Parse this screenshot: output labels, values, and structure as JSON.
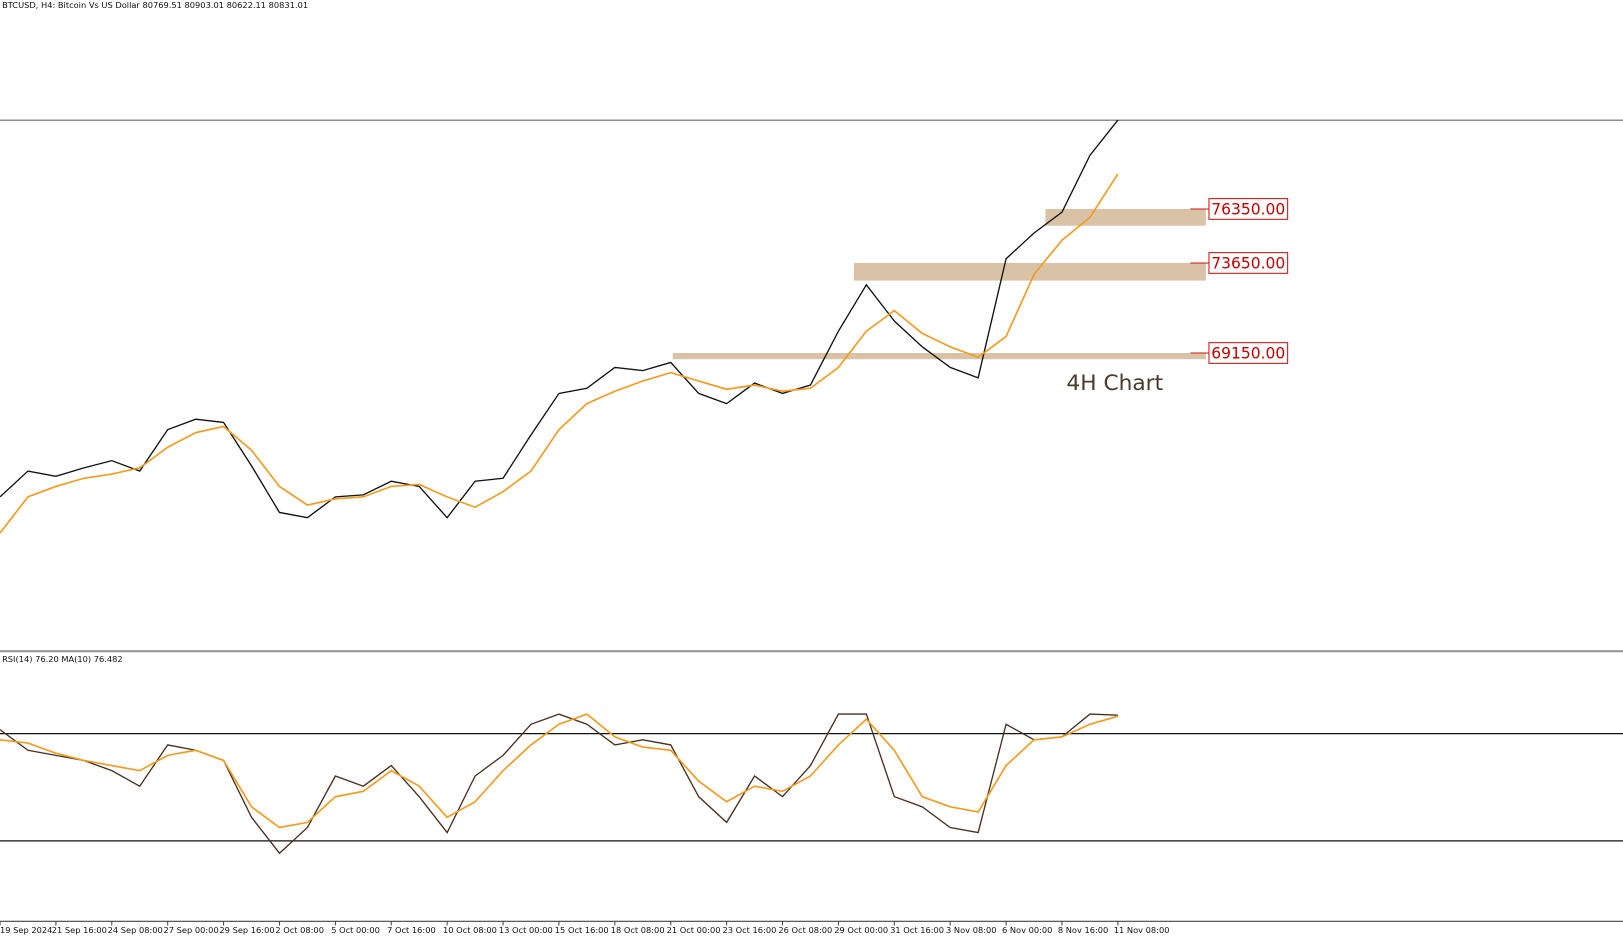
{
  "chart_data": [
    {
      "type": "line",
      "title": "BTCUSD, H4:  Bitcoin Vs US Dollar  80769.51 80903.01 80622.11 80831.01",
      "annotation": "4H Chart",
      "ylim": [
        54300,
        86790
      ],
      "series": [
        {
          "color": "#111111",
          "values": [
            61960,
            63250,
            62990,
            63410,
            63770,
            63250,
            65320,
            65840,
            65680,
            63510,
            61180,
            60920,
            61960,
            62060,
            62740,
            62480,
            60920,
            62740,
            62890,
            65060,
            67130,
            67390,
            68430,
            68270,
            68680,
            67130,
            66620,
            67650,
            67130,
            67550,
            70240,
            72560,
            70750,
            69460,
            68430,
            67910,
            73860,
            75150,
            76190,
            79030,
            80790
          ]
        },
        {
          "color": "#f29b1f",
          "values": [
            60150,
            61960,
            62480,
            62890,
            63100,
            63410,
            64440,
            65170,
            65480,
            64290,
            62480,
            61550,
            61860,
            61960,
            62480,
            62580,
            61960,
            61440,
            62220,
            63250,
            65320,
            66620,
            67240,
            67750,
            68170,
            67750,
            67340,
            67550,
            67240,
            67390,
            68430,
            70240,
            71270,
            70130,
            69460,
            68940,
            69980,
            73080,
            74790,
            75930,
            78100
          ]
        }
      ],
      "zones": [
        {
          "value": 76350,
          "label": "76350.00",
          "low": 75510,
          "color": "#d9c2a5"
        },
        {
          "value": 73650,
          "label": "73650.00",
          "low": 72770,
          "color": "#d9c2a5"
        },
        {
          "value": 69150,
          "label": "69150.00",
          "low": 68840,
          "color": "#d9c2a5"
        }
      ]
    },
    {
      "type": "line",
      "title": "RSI(14) 76.20 MA(10) 76.482",
      "ylim": [
        0,
        100
      ],
      "levels": [
        30,
        70
      ],
      "categories": [
        "19 Sep 2024",
        null,
        "21 Sep 16:00",
        null,
        "24 Sep 08:00",
        null,
        "27 Sep 00:00",
        null,
        "29 Sep 16:00",
        null,
        "2 Oct 08:00",
        null,
        "5 Oct 00:00",
        null,
        "7 Oct 16:00",
        null,
        "10 Oct 08:00",
        null,
        "13 Oct 00:00",
        null,
        "15 Oct 16:00",
        null,
        "18 Oct 08:00",
        null,
        "21 Oct 00:00",
        null,
        "23 Oct 16:00",
        null,
        "26 Oct 08:00",
        null,
        "29 Oct 00:00",
        null,
        "31 Oct 16:00",
        null,
        "3 Nov 08:00",
        null,
        "6 Nov 00:00",
        null,
        "8 Nov 16:00",
        null,
        "11 Nov 08:00"
      ],
      "series": [
        {
          "color": "#4a3020",
          "values": [
            71.5,
            63.8,
            61.9,
            60,
            56.2,
            50.4,
            65.8,
            63.8,
            60,
            38.8,
            25.4,
            35,
            54.2,
            50.4,
            58.1,
            46.5,
            33.1,
            54.2,
            61.9,
            73.5,
            77.3,
            73.5,
            65.8,
            67.7,
            65.8,
            46.5,
            36.9,
            54.2,
            46.5,
            58.1,
            77.3,
            77.3,
            46.5,
            42.7,
            35,
            33.1,
            73.5,
            67.7,
            68.8,
            77.3,
            76.9
          ]
        },
        {
          "color": "#f29b1f",
          "values": [
            67.7,
            66.5,
            62.7,
            60,
            58.1,
            56.2,
            61.9,
            63.8,
            60,
            42.7,
            35,
            36.9,
            46.5,
            48.5,
            56.2,
            50.4,
            38.8,
            44.6,
            56.2,
            65.8,
            73.5,
            77.3,
            68.8,
            65,
            63.8,
            52.3,
            44.6,
            50.4,
            48.5,
            54.2,
            65.8,
            75.4,
            63.8,
            46.5,
            42.7,
            40.8,
            58.1,
            67.7,
            68.8,
            73.5,
            76.5
          ]
        }
      ]
    }
  ]
}
